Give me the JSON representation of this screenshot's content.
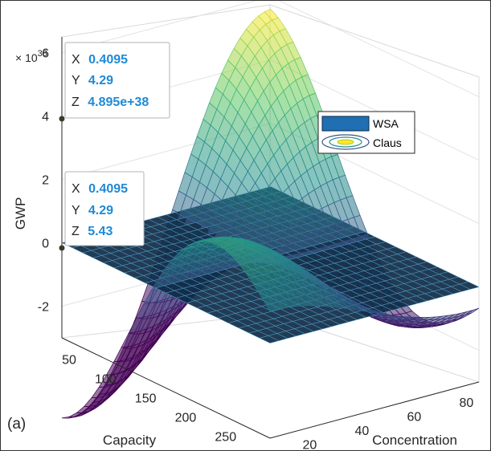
{
  "panel_label": "(a)",
  "chart_data": {
    "type": "surface",
    "xlabel": "Concentration",
    "ylabel": "Capacity",
    "zlabel": "GWP",
    "z_exponent_label": "× 10",
    "z_exponent": "38",
    "x_ticks": [
      "20",
      "40",
      "60",
      "80"
    ],
    "y_ticks": [
      "50",
      "100",
      "150",
      "200",
      "250"
    ],
    "z_ticks": [
      "-2",
      "0",
      "2",
      "4",
      "6"
    ],
    "xlim": [
      10,
      90
    ],
    "ylim": [
      20,
      280
    ],
    "zlim": [
      -3,
      6.5
    ],
    "grid": true,
    "legend_position": "top-right",
    "colormap": [
      "#440154",
      "#3b528b",
      "#21918c",
      "#5ec962",
      "#fde725"
    ],
    "series": [
      {
        "name": "WSA",
        "type": "surface-plane",
        "z": 0,
        "color": "#0f2a44",
        "edge": "#4fa8d8"
      },
      {
        "name": "Claus",
        "type": "surface-wave",
        "z_peak": 5.6,
        "z_trough": -2.6
      }
    ],
    "datatips": [
      {
        "x_label": "X",
        "x_value": "0.4095",
        "y_label": "Y",
        "y_value": "4.29",
        "z_label": "Z",
        "z_value": "4.895e+38"
      },
      {
        "x_label": "X",
        "x_value": "0.4095",
        "y_label": "Y",
        "y_value": "4.29",
        "z_label": "Z",
        "z_value": "5.43"
      }
    ]
  }
}
